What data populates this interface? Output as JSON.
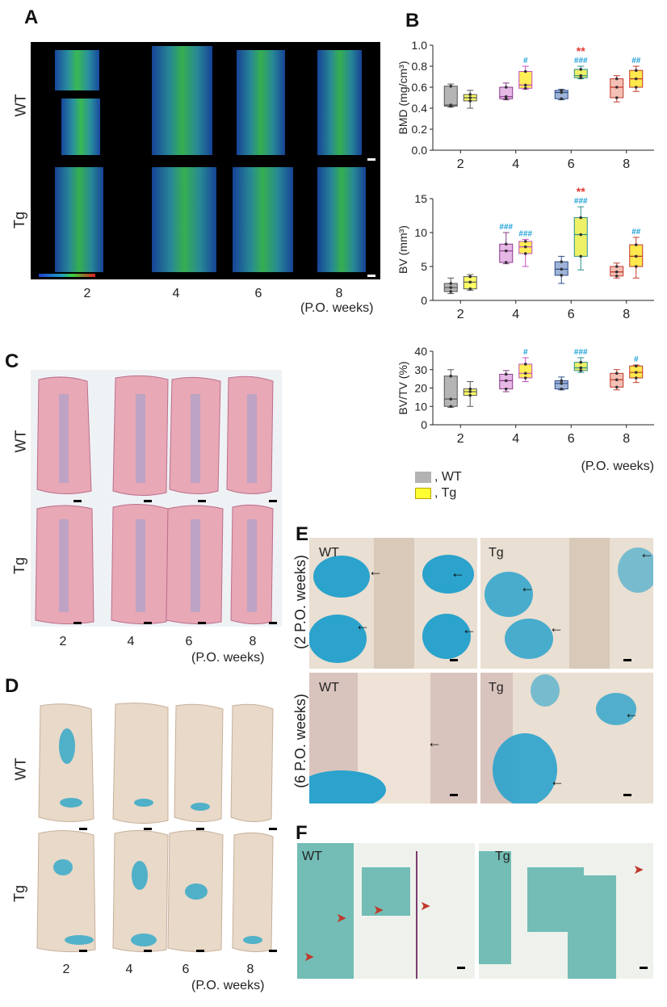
{
  "panels": {
    "A": {
      "label": "A",
      "rows": [
        "WT",
        "Tg"
      ],
      "weeks": [
        "2",
        "4",
        "6",
        "8"
      ],
      "unit": "(P.O. weeks)"
    },
    "B": {
      "label": "B"
    },
    "C": {
      "label": "C",
      "rows": [
        "WT",
        "Tg"
      ],
      "weeks": [
        "2",
        "4",
        "6",
        "8"
      ],
      "unit": "(P.O. weeks)"
    },
    "D": {
      "label": "D",
      "rows": [
        "WT",
        "Tg"
      ],
      "weeks": [
        "2",
        "4",
        "6",
        "8"
      ],
      "unit": "(P.O. weeks)"
    },
    "E": {
      "label": "E",
      "row_labels": [
        "(2 P.O. weeks)",
        "(6 P.O. weeks)"
      ],
      "tags": [
        "WT",
        "Tg",
        "WT",
        "Tg"
      ]
    },
    "F": {
      "label": "F",
      "tags": [
        "WT",
        "Tg"
      ]
    }
  },
  "legend": {
    "wt_label": ", WT",
    "tg_label": ", Tg",
    "wt_color": "#b3b3b3",
    "tg_color": "#ffff33"
  },
  "chart_data": [
    {
      "type": "box",
      "ylabel": "BMD (mg/cm³)",
      "ylim": [
        0,
        1.0
      ],
      "yticks": [
        "0.0",
        "0.2",
        "0.4",
        "0.6",
        "0.8",
        "1.0"
      ],
      "categories": [
        "2",
        "4",
        "6",
        "8"
      ],
      "series": [
        {
          "name": "WT",
          "boxes": [
            [
              0.41,
              0.42,
              0.43,
              0.61,
              0.63
            ],
            [
              0.48,
              0.49,
              0.51,
              0.6,
              0.64
            ],
            [
              0.48,
              0.49,
              0.55,
              0.57,
              0.58
            ],
            [
              0.46,
              0.5,
              0.6,
              0.68,
              0.71
            ]
          ]
        },
        {
          "name": "Tg",
          "boxes": [
            [
              0.4,
              0.47,
              0.5,
              0.53,
              0.57
            ],
            [
              0.58,
              0.59,
              0.62,
              0.75,
              0.8
            ],
            [
              0.68,
              0.69,
              0.71,
              0.77,
              0.8
            ],
            [
              0.56,
              0.6,
              0.68,
              0.76,
              0.8
            ]
          ]
        }
      ],
      "annotations": [
        {
          "category": "4",
          "series": "Tg",
          "text": "#",
          "color": "#1a9fd8"
        },
        {
          "category": "6",
          "series": "Tg",
          "text": "###",
          "color": "#1a9fd8"
        },
        {
          "category": "6",
          "series": "Tg",
          "text": "**",
          "color": "#e53935"
        },
        {
          "category": "8",
          "series": "Tg",
          "text": "##",
          "color": "#1a9fd8"
        }
      ]
    },
    {
      "type": "box",
      "ylabel": "BV (mm³)",
      "ylim": [
        0,
        15
      ],
      "yticks": [
        "0",
        "5",
        "10",
        "15"
      ],
      "categories": [
        "2",
        "4",
        "6",
        "8"
      ],
      "series": [
        {
          "name": "WT",
          "boxes": [
            [
              1.0,
              1.3,
              1.9,
              2.5,
              3.3
            ],
            [
              5.4,
              5.6,
              7.3,
              8.3,
              10.0
            ],
            [
              2.5,
              3.7,
              4.6,
              5.7,
              6.5
            ],
            [
              3.3,
              3.6,
              4.2,
              5.0,
              5.5
            ]
          ]
        },
        {
          "name": "Tg",
          "boxes": [
            [
              1.5,
              1.7,
              2.7,
              3.5,
              3.8
            ],
            [
              5.0,
              6.9,
              7.9,
              8.7,
              9.0
            ],
            [
              4.5,
              6.5,
              9.7,
              12.2,
              13.8
            ],
            [
              3.3,
              5.0,
              6.5,
              8.2,
              9.3
            ]
          ]
        }
      ],
      "annotations": [
        {
          "category": "4",
          "series": "WT",
          "text": "###",
          "color": "#1a9fd8"
        },
        {
          "category": "4",
          "series": "Tg",
          "text": "###",
          "color": "#1a9fd8"
        },
        {
          "category": "6",
          "series": "Tg",
          "text": "###",
          "color": "#1a9fd8"
        },
        {
          "category": "6",
          "series": "Tg",
          "text": "**",
          "color": "#e53935"
        },
        {
          "category": "8",
          "series": "Tg",
          "text": "##",
          "color": "#1a9fd8"
        }
      ]
    },
    {
      "type": "box",
      "ylabel": "BV/TV (%)",
      "ylim": [
        0,
        40
      ],
      "yticks": [
        "0",
        "10",
        "20",
        "30",
        "40"
      ],
      "categories": [
        "2",
        "4",
        "6",
        "8"
      ],
      "xlabel": "(P.O. weeks)",
      "series": [
        {
          "name": "WT",
          "boxes": [
            [
              9.5,
              10.0,
              14.0,
              26.5,
              30.0
            ],
            [
              18.0,
              19.5,
              24.0,
              27.5,
              29.5
            ],
            [
              19.0,
              19.5,
              22.5,
              24.0,
              26.0
            ],
            [
              19.0,
              20.5,
              24.5,
              28.0,
              30.0
            ]
          ]
        },
        {
          "name": "Tg",
          "boxes": [
            [
              10.0,
              16.0,
              18.0,
              19.5,
              23.5
            ],
            [
              23.5,
              25.5,
              28.0,
              33.0,
              36.5
            ],
            [
              28.5,
              29.5,
              31.0,
              34.0,
              36.5
            ],
            [
              23.0,
              25.5,
              28.5,
              32.0,
              32.5
            ]
          ]
        }
      ],
      "annotations": [
        {
          "category": "4",
          "series": "Tg",
          "text": "#",
          "color": "#1a9fd8"
        },
        {
          "category": "6",
          "series": "Tg",
          "text": "###",
          "color": "#1a9fd8"
        },
        {
          "category": "8",
          "series": "Tg",
          "text": "#",
          "color": "#1a9fd8"
        }
      ]
    }
  ],
  "box_colors": {
    "WT": {
      "2": [
        "#b5b5b5",
        "#555555"
      ],
      "4": [
        "#e6b8e6",
        "#8a3a8a"
      ],
      "6": [
        "#9fb3d6",
        "#2d4e8a"
      ],
      "8": [
        "#f4c0b5",
        "#c0392b"
      ]
    },
    "Tg": {
      "2": [
        "#ffff66",
        "#555555"
      ],
      "4": [
        "#ffee55",
        "#c44fbf"
      ],
      "6": [
        "#eef066",
        "#2a8f8a"
      ],
      "8": [
        "#ffe94d",
        "#c0392b"
      ]
    }
  }
}
